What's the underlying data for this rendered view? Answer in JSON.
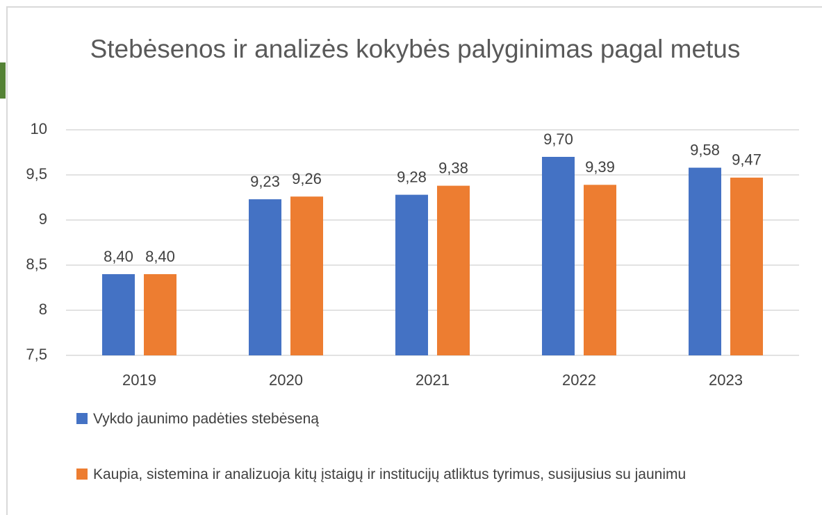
{
  "chart_data": {
    "type": "bar",
    "title": "Stebėsenos ir analizės kokybės palyginimas pagal metus",
    "categories": [
      "2019",
      "2020",
      "2021",
      "2022",
      "2023"
    ],
    "series": [
      {
        "name": "Vykdo jaunimo padėties stebėseną",
        "color": "#4472c4",
        "values": [
          8.4,
          9.23,
          9.28,
          9.7,
          9.58
        ],
        "value_labels": [
          "8,40",
          "9,23",
          "9,28",
          "9,70",
          "9,58"
        ]
      },
      {
        "name": "Kaupia, sistemina ir analizuoja kitų įstaigų ir institucijų atliktus tyrimus, susijusius su jaunimu",
        "color": "#ed7d31",
        "values": [
          8.4,
          9.26,
          9.38,
          9.39,
          9.47
        ],
        "value_labels": [
          "8,40",
          "9,26",
          "9,38",
          "9,39",
          "9,47"
        ]
      }
    ],
    "ylim": [
      7.5,
      10
    ],
    "yticks": [
      {
        "value": 7.5,
        "label": "7,5"
      },
      8,
      {
        "value": 8.5,
        "label": "8,5"
      },
      9,
      {
        "value": 9.5,
        "label": "9,5"
      },
      10
    ],
    "grid": true,
    "legend": "bottom"
  }
}
